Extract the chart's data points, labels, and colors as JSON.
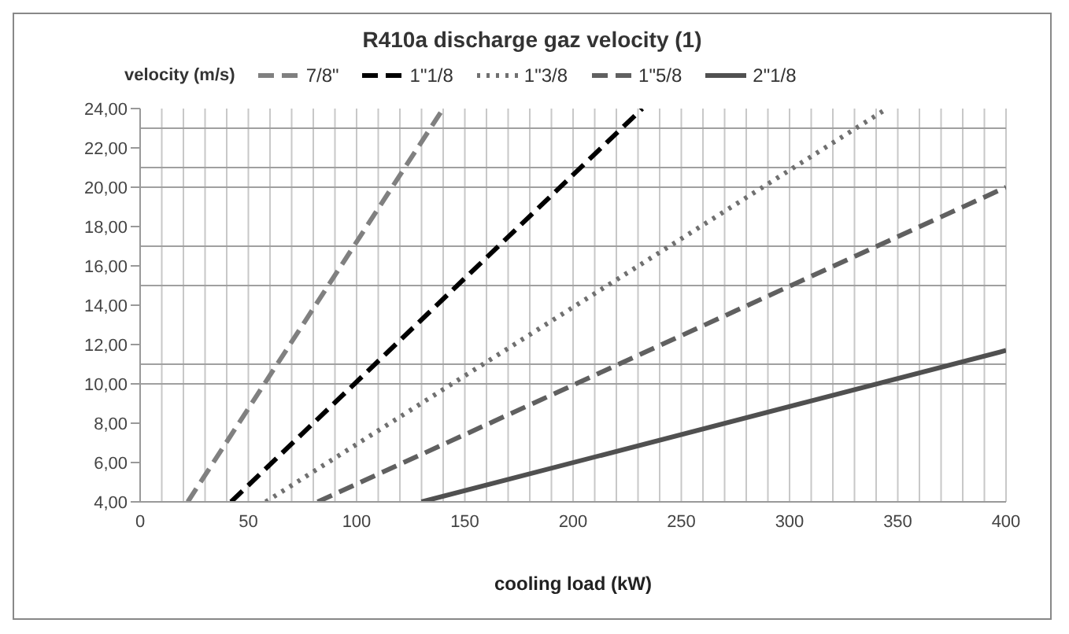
{
  "chart_data": {
    "type": "line",
    "title": "R410a discharge gaz velocity (1)",
    "xlabel": "cooling load (kW)",
    "ylabel": "velocity (m/s)",
    "xlim": [
      0,
      400
    ],
    "xticks": [
      0,
      {
        "value": 10,
        "label": null
      },
      {
        "value": 20,
        "label": null
      },
      {
        "value": 30,
        "label": null
      },
      {
        "value": 40,
        "label": null
      },
      50,
      {
        "value": 60,
        "label": null
      },
      {
        "value": 70,
        "label": null
      },
      {
        "value": 80,
        "label": null
      },
      {
        "value": 90,
        "label": null
      },
      100,
      {
        "value": 110,
        "label": null
      },
      {
        "value": 120,
        "label": null
      },
      {
        "value": 130,
        "label": null
      },
      {
        "value": 140,
        "label": null
      },
      150,
      {
        "value": 160,
        "label": null
      },
      {
        "value": 170,
        "label": null
      },
      {
        "value": 180,
        "label": null
      },
      {
        "value": 190,
        "label": null
      },
      200,
      {
        "value": 210,
        "label": null
      },
      {
        "value": 220,
        "label": null
      },
      {
        "value": 230,
        "label": null
      },
      {
        "value": 240,
        "label": null
      },
      250,
      {
        "value": 260,
        "label": null
      },
      {
        "value": 270,
        "label": null
      },
      {
        "value": 280,
        "label": null
      },
      {
        "value": 290,
        "label": null
      },
      300,
      {
        "value": 310,
        "label": null
      },
      {
        "value": 320,
        "label": null
      },
      {
        "value": 330,
        "label": null
      },
      {
        "value": 340,
        "label": null
      },
      350,
      {
        "value": 360,
        "label": null
      },
      {
        "value": 370,
        "label": null
      },
      {
        "value": 380,
        "label": null
      },
      {
        "value": 390,
        "label": null
      },
      400
    ],
    "ylim": [
      4,
      24
    ],
    "yticks": [
      {
        "value": 4,
        "label": "4,00"
      },
      {
        "value": 6,
        "label": "6,00"
      },
      {
        "value": 8,
        "label": "8,00"
      },
      {
        "value": 10,
        "label": "10,00"
      },
      {
        "value": 12,
        "label": "12,00"
      },
      {
        "value": 14,
        "label": "14,00"
      },
      {
        "value": 16,
        "label": "16,00"
      },
      {
        "value": 18,
        "label": "18,00"
      },
      {
        "value": 20,
        "label": "20,00"
      },
      {
        "value": 22,
        "label": "22,00"
      },
      {
        "value": 24,
        "label": "24,00"
      }
    ],
    "grid": "x",
    "legend": "top",
    "marker": "none",
    "ref_lines": [
      {
        "axis": "y",
        "value": 23,
        "color": "#a0a0a0"
      },
      {
        "axis": "y",
        "value": 21,
        "color": "#a0a0a0"
      },
      {
        "axis": "y",
        "value": 20,
        "color": "#a0a0a0"
      },
      {
        "axis": "y",
        "value": 17,
        "color": "#a0a0a0"
      },
      {
        "axis": "y",
        "value": 15,
        "color": "#a0a0a0"
      },
      {
        "axis": "y",
        "value": 11,
        "color": "#a0a0a0"
      },
      {
        "axis": "y",
        "value": 10,
        "color": "#a0a0a0"
      }
    ],
    "series": [
      {
        "name": "7/8\"",
        "color": "#808080",
        "line_style": "dashed",
        "x": [
          22,
          140
        ],
        "values": [
          4,
          24
        ]
      },
      {
        "name": "1\"1/8",
        "color": "#000000",
        "line_style": "dashed",
        "x": [
          42,
          232
        ],
        "values": [
          4,
          24
        ]
      },
      {
        "name": "1\"3/8",
        "color": "#707070",
        "line_style": "dotted",
        "x": [
          58,
          345
        ],
        "values": [
          4,
          24
        ]
      },
      {
        "name": "1\"5/8",
        "color": "#606060",
        "line_style": "dashed",
        "x": [
          82,
          400
        ],
        "values": [
          4,
          20
        ]
      },
      {
        "name": "2\"1/8",
        "color": "#505050",
        "line_style": "solid",
        "x": [
          130,
          400
        ],
        "values": [
          4,
          11.7
        ]
      }
    ]
  }
}
